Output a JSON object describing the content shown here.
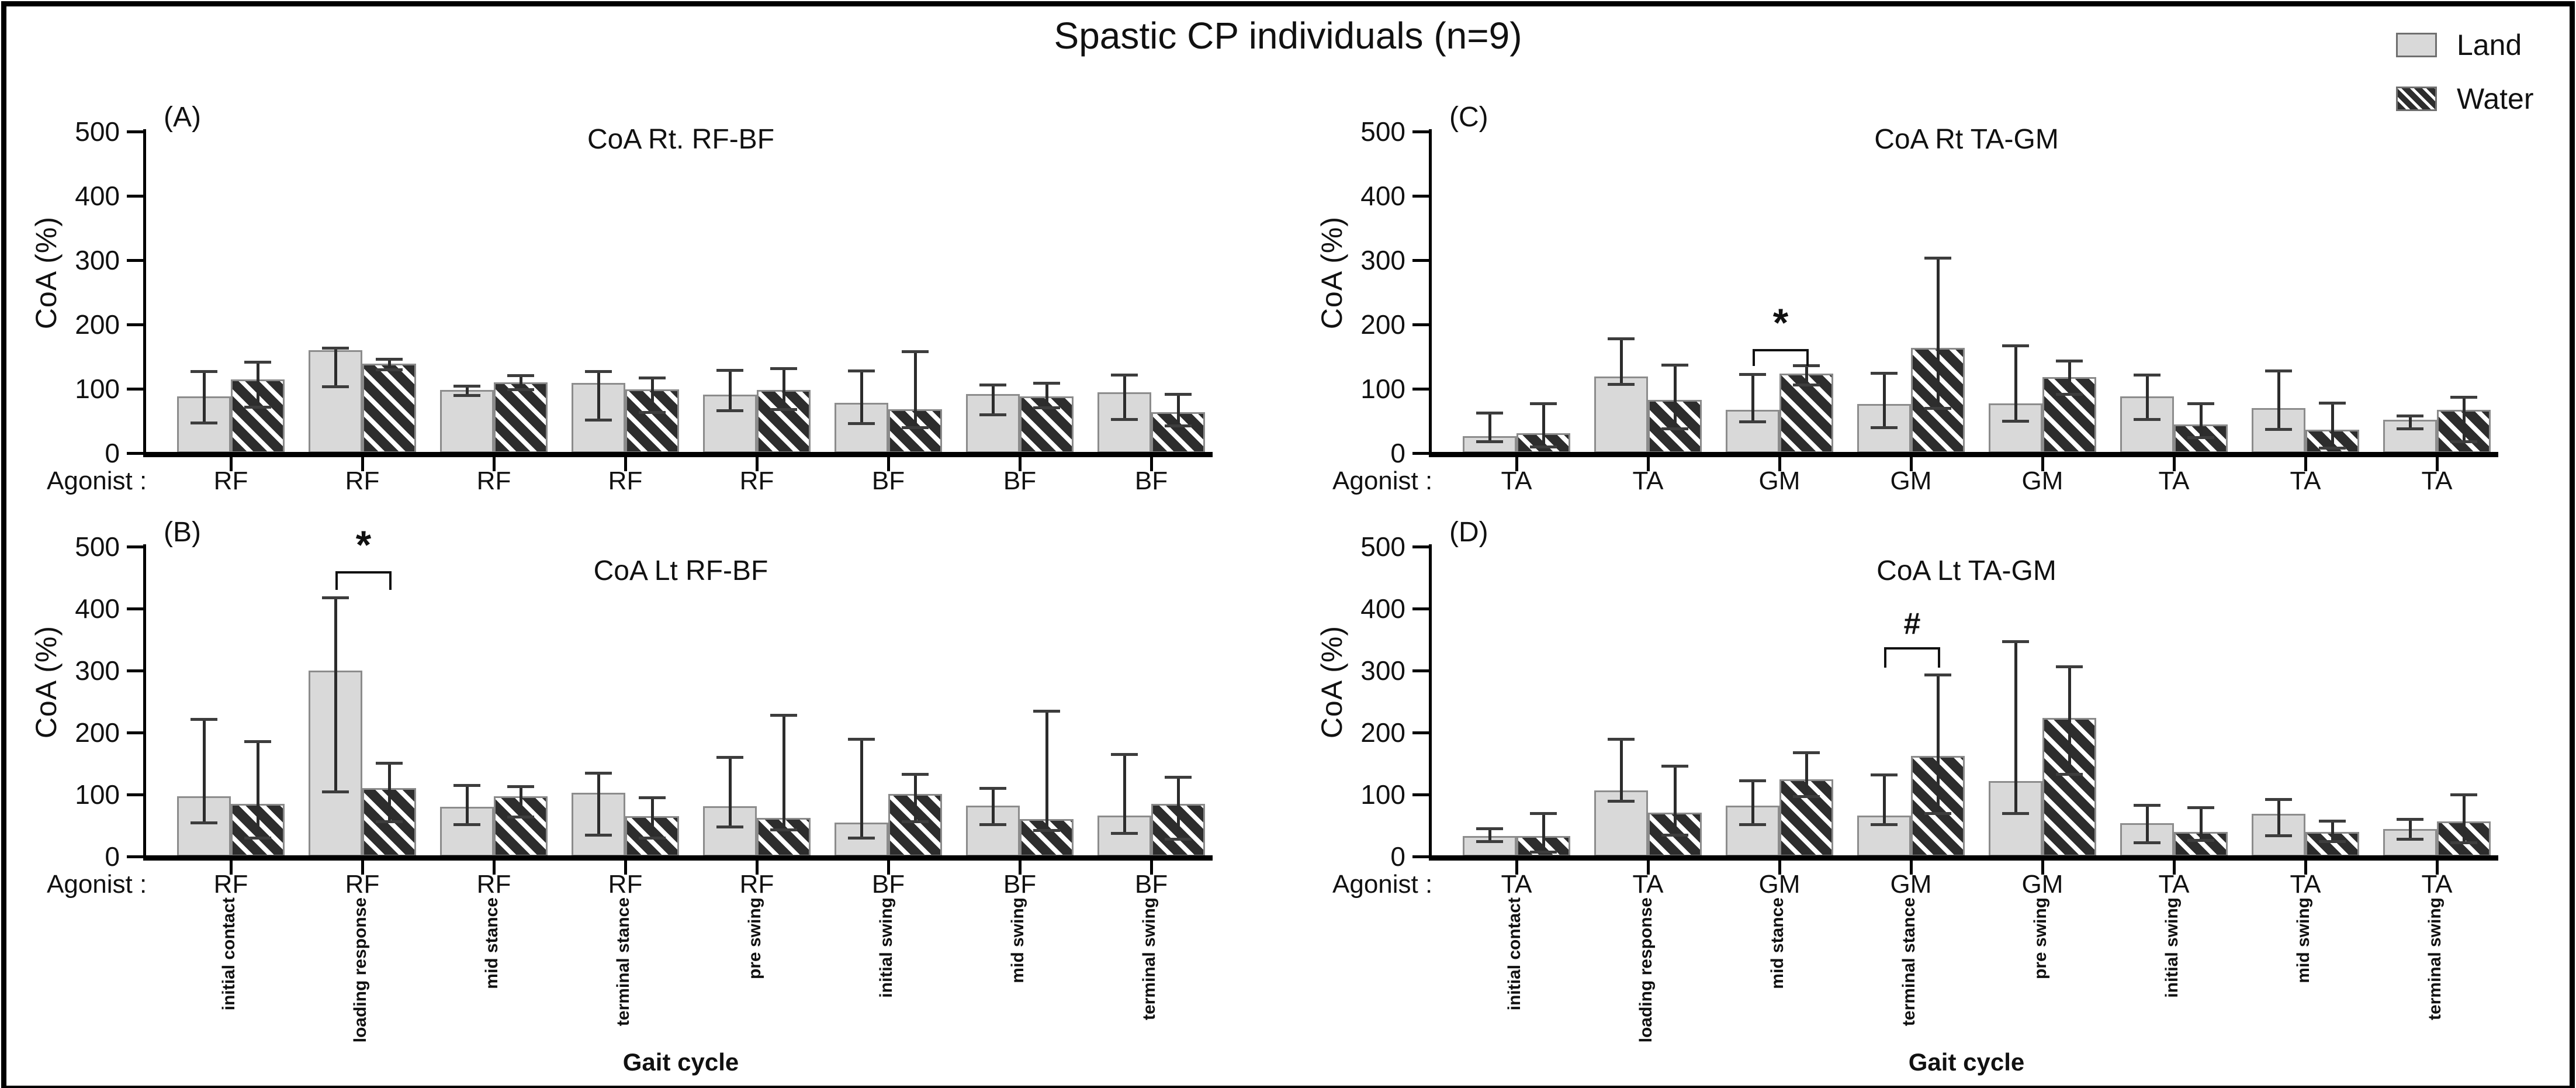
{
  "title": "Spastic CP individuals (n=9)",
  "legend": {
    "items": [
      {
        "label": "Land",
        "pattern": "land",
        "fill": "#d9d9d9"
      },
      {
        "label": "Water",
        "pattern": "water",
        "fill": "#2d2d2d",
        "stripe": "#ffffff"
      }
    ]
  },
  "colors": {
    "land_fill": "#d9d9d9",
    "water_dark": "#2d2d2d",
    "water_stripe": "#ffffff",
    "bar_border": "#8a8a8a",
    "error_bar": "#2c2c2c",
    "axis": "#000000",
    "text": "#111111"
  },
  "y_axis": {
    "label": "CoA (%)",
    "max": 500,
    "ticks": [
      0,
      100,
      200,
      300,
      400,
      500
    ]
  },
  "x_axis": {
    "agonist_prefix": "Agonist :",
    "gait_label": "Gait cycle",
    "phases": [
      "initial contact",
      "loading response",
      "mid stance",
      "terminal stance",
      "pre swing",
      "initial swing",
      "mid swing",
      "terminal swing"
    ]
  },
  "chart_data": [
    {
      "type": "bar",
      "id": "A",
      "label": "(A)",
      "title": "CoA Rt. RF-BF",
      "col": "left",
      "row": "top",
      "agonists": [
        "RF",
        "RF",
        "RF",
        "RF",
        "RF",
        "BF",
        "BF",
        "BF"
      ],
      "ylim": [
        0,
        500
      ],
      "series": [
        {
          "name": "Land",
          "values": [
            88,
            160,
            98,
            109,
            91,
            78,
            92,
            95
          ],
          "err_lo": [
            47,
            104,
            90,
            52,
            66,
            46,
            60,
            53
          ],
          "err_hi": [
            127,
            164,
            105,
            127,
            129,
            128,
            106,
            122
          ]
        },
        {
          "name": "Water",
          "values": [
            115,
            139,
            110,
            99,
            98,
            68,
            88,
            64
          ],
          "err_lo": [
            72,
            130,
            99,
            64,
            68,
            40,
            71,
            43
          ],
          "err_hi": [
            142,
            146,
            121,
            117,
            132,
            158,
            109,
            92
          ]
        }
      ],
      "significance": null
    },
    {
      "type": "bar",
      "id": "B",
      "label": "(B)",
      "title": "CoA Lt RF-BF",
      "col": "left",
      "row": "bottom",
      "agonists": [
        "RF",
        "RF",
        "RF",
        "RF",
        "RF",
        "BF",
        "BF",
        "BF"
      ],
      "ylim": [
        0,
        500
      ],
      "series": [
        {
          "name": "Land",
          "values": [
            97,
            300,
            80,
            103,
            81,
            55,
            82,
            66
          ],
          "err_lo": [
            55,
            105,
            52,
            35,
            48,
            30,
            52,
            38
          ],
          "err_hi": [
            222,
            418,
            115,
            135,
            160,
            190,
            110,
            165
          ]
        },
        {
          "name": "Water",
          "values": [
            85,
            110,
            97,
            65,
            62,
            101,
            60,
            85
          ],
          "err_lo": [
            30,
            57,
            64,
            30,
            43,
            57,
            42,
            28
          ],
          "err_hi": [
            186,
            151,
            113,
            95,
            228,
            133,
            235,
            128
          ]
        }
      ],
      "significance": {
        "group_index": 1,
        "symbol": "*",
        "bracket_y": 460,
        "leg": 30
      }
    },
    {
      "type": "bar",
      "id": "C",
      "label": "(C)",
      "title": "CoA Rt TA-GM",
      "col": "right",
      "row": "top",
      "agonists": [
        "TA",
        "TA",
        "GM",
        "GM",
        "GM",
        "TA",
        "TA",
        "TA"
      ],
      "ylim": [
        0,
        500
      ],
      "series": [
        {
          "name": "Land",
          "values": [
            26,
            119,
            67,
            76,
            77,
            88,
            70,
            52
          ],
          "err_lo": [
            18,
            107,
            49,
            40,
            50,
            53,
            37,
            38
          ],
          "err_hi": [
            63,
            178,
            123,
            125,
            167,
            122,
            128,
            58
          ]
        },
        {
          "name": "Water",
          "values": [
            31,
            83,
            124,
            164,
            118,
            45,
            36,
            67
          ],
          "err_lo": [
            10,
            38,
            106,
            70,
            92,
            25,
            8,
            18
          ],
          "err_hi": [
            77,
            137,
            136,
            304,
            144,
            77,
            78,
            87
          ]
        }
      ],
      "significance": {
        "group_index": 2,
        "symbol": "*",
        "bracket_y": 162,
        "leg": 27
      }
    },
    {
      "type": "bar",
      "id": "D",
      "label": "(D)",
      "title": "CoA Lt TA-GM",
      "col": "right",
      "row": "bottom",
      "agonists": [
        "TA",
        "TA",
        "GM",
        "GM",
        "GM",
        "TA",
        "TA",
        "TA"
      ],
      "ylim": [
        0,
        500
      ],
      "series": [
        {
          "name": "Land",
          "values": [
            33,
            107,
            82,
            66,
            122,
            54,
            69,
            44
          ],
          "err_lo": [
            25,
            90,
            52,
            52,
            70,
            23,
            34,
            28
          ],
          "err_hi": [
            45,
            190,
            123,
            132,
            347,
            83,
            92,
            60
          ]
        },
        {
          "name": "Water",
          "values": [
            33,
            71,
            125,
            162,
            224,
            40,
            40,
            57
          ],
          "err_lo": [
            8,
            35,
            97,
            70,
            133,
            26,
            25,
            23
          ],
          "err_hi": [
            70,
            146,
            168,
            293,
            307,
            79,
            58,
            100
          ]
        }
      ],
      "significance": {
        "group_index": 3,
        "symbol": "#",
        "bracket_y": 338,
        "leg": 33
      }
    }
  ]
}
